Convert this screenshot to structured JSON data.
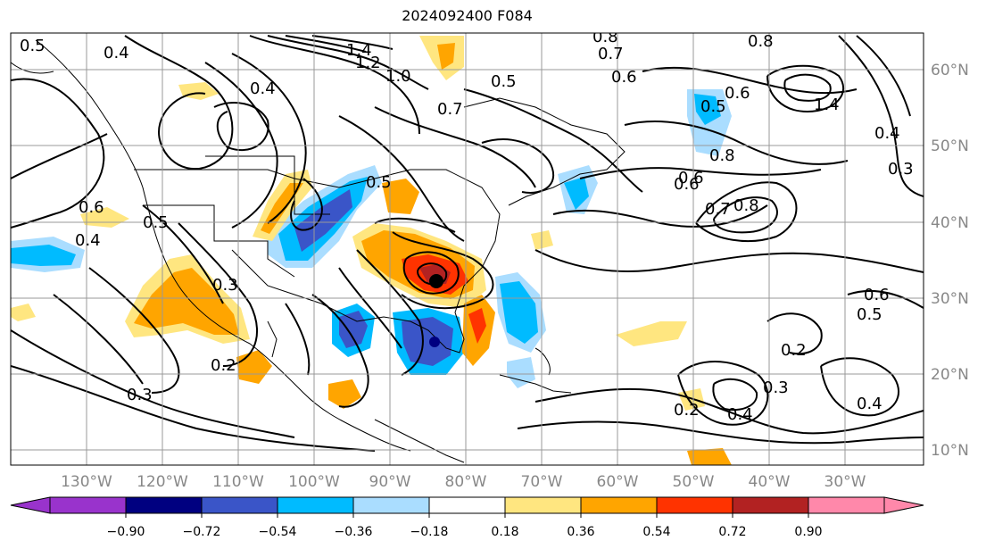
{
  "title": "2024092400 F084",
  "longitude_labels": [
    "130°W",
    "120°W",
    "110°W",
    "100°W",
    "90°W",
    "80°W",
    "70°W",
    "60°W",
    "50°W",
    "40°W",
    "30°W"
  ],
  "latitude_labels": [
    "60°N",
    "50°N",
    "40°N",
    "30°N",
    "20°N",
    "10°N"
  ],
  "colorbar": {
    "ticks": [
      "−0.90",
      "−0.72",
      "−0.54",
      "−0.36",
      "−0.18",
      "0.18",
      "0.36",
      "0.54",
      "0.72",
      "0.90"
    ],
    "colors": [
      "#9933cc",
      "#000080",
      "#3a55c8",
      "#00bbff",
      "#aaddff",
      "#ffffff",
      "#ffe680",
      "#ffa500",
      "#ff3300",
      "#b22222",
      "#ff88aa"
    ]
  },
  "contour_labels": [
    {
      "text": "0.5"
    },
    {
      "text": "0.4"
    },
    {
      "text": "1.2"
    },
    {
      "text": "1.4"
    },
    {
      "text": "1.0"
    },
    {
      "text": "0.8"
    },
    {
      "text": "0.7"
    },
    {
      "text": "0.6"
    },
    {
      "text": "0.5"
    },
    {
      "text": "0.4"
    },
    {
      "text": "0.6"
    },
    {
      "text": "0.5"
    },
    {
      "text": "0.4"
    },
    {
      "text": "0.3"
    },
    {
      "text": "0.2"
    },
    {
      "text": "0.3"
    },
    {
      "text": "0.6"
    },
    {
      "text": "0.7"
    },
    {
      "text": "0.8"
    },
    {
      "text": "0.6"
    },
    {
      "text": "0.8"
    },
    {
      "text": "0.3"
    },
    {
      "text": "0.5"
    },
    {
      "text": "0.6"
    },
    {
      "text": "0.2"
    },
    {
      "text": "0.4"
    },
    {
      "text": "0.2"
    },
    {
      "text": "0.4"
    },
    {
      "text": "0.3"
    },
    {
      "text": "0.5"
    },
    {
      "text": "0.8"
    },
    {
      "text": "0.6"
    },
    {
      "text": "0.4"
    },
    {
      "text": "0.7"
    },
    {
      "text": "1.4"
    },
    {
      "text": "0.5"
    }
  ]
}
